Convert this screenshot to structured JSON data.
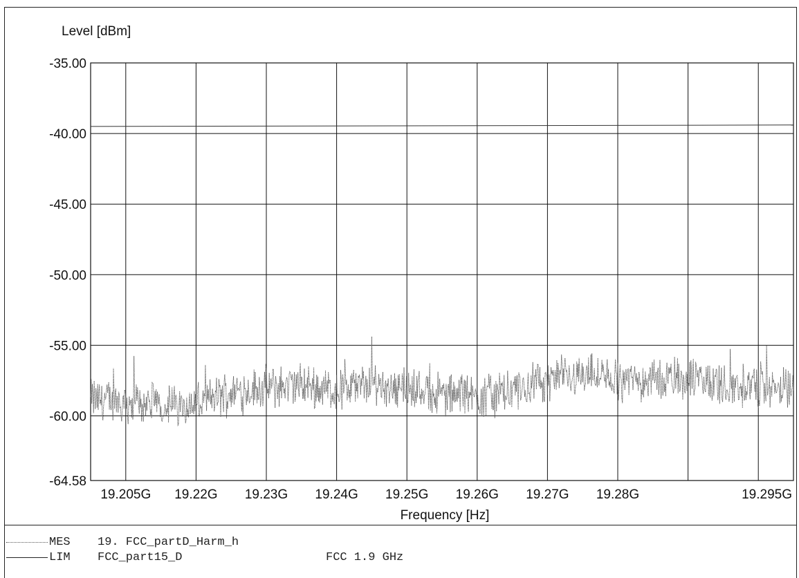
{
  "chart_data": {
    "type": "line",
    "ylabel": "Level [dBm]",
    "xlabel": "Frequency [Hz]",
    "ylim": [
      -64.58,
      -35.0
    ],
    "xlim": [
      19.2,
      19.3
    ],
    "x_unit": "GHz",
    "y_tick_labels": [
      "-35.00",
      "-40.00",
      "-45.00",
      "-50.00",
      "-55.00",
      "-60.00",
      "-64.58"
    ],
    "y_ticks": [
      -35,
      -40,
      -45,
      -50,
      -55,
      -60,
      -64.58
    ],
    "x_tick_labels": [
      "19.205G",
      "19.22G",
      "19.23G",
      "19.24G",
      "19.25G",
      "19.26G",
      "19.27G",
      "19.28G",
      "19.295G"
    ],
    "x_ticks": [
      19.205,
      19.215,
      19.225,
      19.235,
      19.245,
      19.255,
      19.265,
      19.275,
      19.285,
      19.295
    ],
    "x_tick_label_positions": [
      19.205,
      19.215,
      19.225,
      19.235,
      19.245,
      19.255,
      19.265,
      19.275,
      19.29
    ],
    "grid": true,
    "series": [
      {
        "key": "LIM",
        "style": "solid",
        "x": [
          19.2,
          19.3
        ],
        "y": [
          -39.5,
          -39.4
        ]
      },
      {
        "key": "MES",
        "style": "dotted",
        "noisy": true,
        "x": [
          19.2,
          19.205,
          19.21,
          19.215,
          19.22,
          19.225,
          19.23,
          19.235,
          19.24,
          19.245,
          19.25,
          19.255,
          19.26,
          19.265,
          19.27,
          19.275,
          19.28,
          19.285,
          19.29,
          19.295,
          19.3
        ],
        "y": [
          -58.8,
          -59.0,
          -59.2,
          -59.2,
          -58.3,
          -58.0,
          -57.8,
          -58.2,
          -57.7,
          -58.0,
          -58.5,
          -58.6,
          -58.3,
          -57.5,
          -57.0,
          -57.5,
          -57.4,
          -57.3,
          -57.8,
          -57.9,
          -58.2
        ]
      }
    ]
  },
  "legend": [
    {
      "key": "MES",
      "name": "19. FCC_partD_Harm_h",
      "note": ""
    },
    {
      "key": "LIM",
      "name": "FCC_part15_D",
      "note": "FCC 1.9 GHz"
    }
  ]
}
